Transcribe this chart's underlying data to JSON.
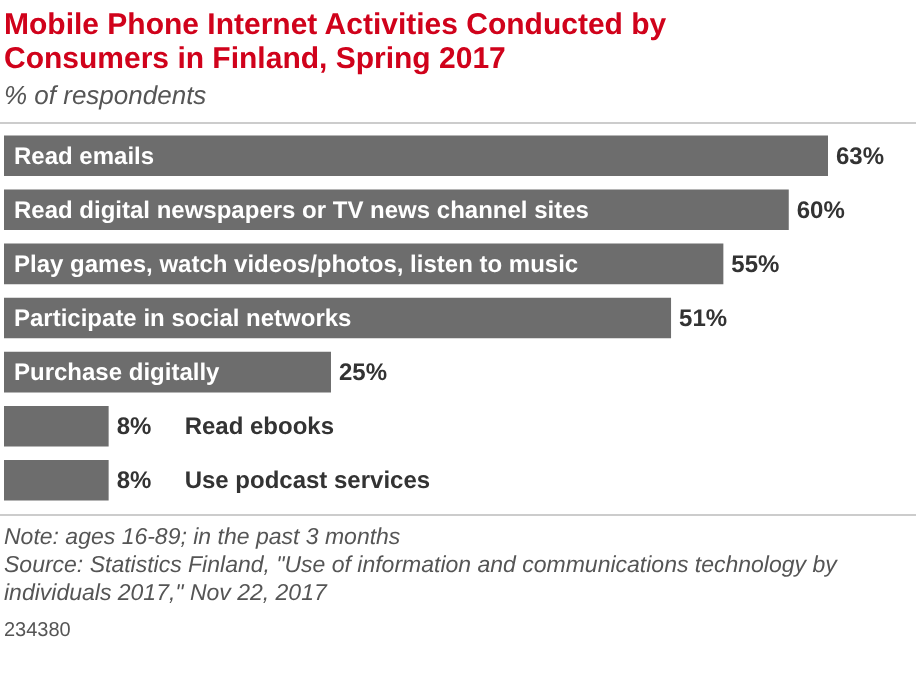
{
  "chart_data": {
    "type": "bar",
    "orientation": "horizontal",
    "tick_labels": false,
    "title": "Mobile Phone Internet Activities Conducted by Consumers in Finland, Spring 2017",
    "subtitle": "% of respondents",
    "categories": [
      "Read emails",
      "Read digital newspapers or TV news channel sites",
      "Play games, watch videos/photos, listen to music",
      "Participate in social networks",
      "Purchase digitally",
      "Read ebooks",
      "Use podcast services"
    ],
    "values": [
      63,
      60,
      55,
      51,
      25,
      8,
      8
    ],
    "value_labels": [
      "63%",
      "60%",
      "55%",
      "51%",
      "25%",
      "8%",
      "8%"
    ],
    "color": "#6d6d6d",
    "annotations": [
      "Note: ages 16-89; in the past 3 months",
      "Source: Statistics Finland, \"Use of information and communications technology by individuals 2017,\" Nov 22, 2017",
      "234380"
    ]
  }
}
